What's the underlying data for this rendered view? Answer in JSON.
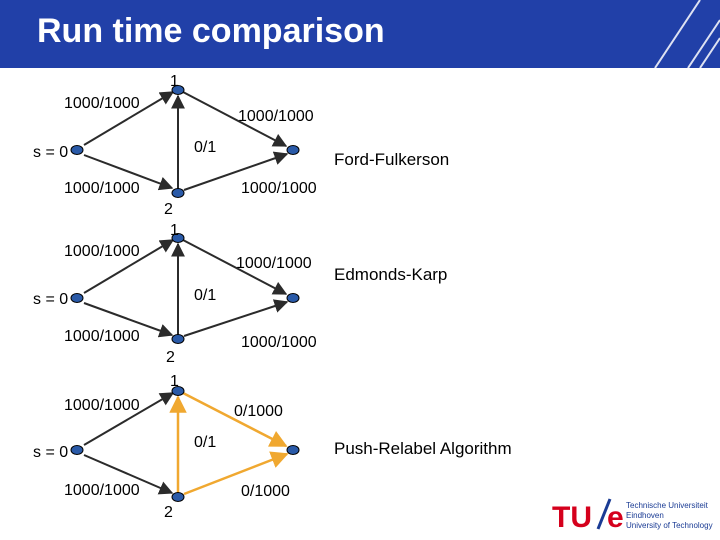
{
  "slide": {
    "title": "Run time comparison"
  },
  "colors": {
    "header": "#2140a8",
    "node": "#2a5aa8",
    "edge": "#2b2b2b",
    "highlight": "#f0a830",
    "logo_red": "#d5001c",
    "logo_blue": "#1a3b94"
  },
  "graphs": [
    {
      "algorithm": "Ford-Fulkerson",
      "top_node_label": "1",
      "bottom_node_label": "2",
      "source_label": "s = 0",
      "edges": {
        "s_to_1": "1000/1000",
        "n1_to_t": "1000/1000",
        "n2_to_n1": "0/1",
        "s_to_2": "1000/1000",
        "n2_to_t": "1000/1000"
      }
    },
    {
      "algorithm": "Edmonds-Karp",
      "top_node_label": "1",
      "bottom_node_label": "2",
      "source_label": "s = 0",
      "edges": {
        "s_to_1": "1000/1000",
        "n1_to_t": "1000/1000",
        "n2_to_n1": "0/1",
        "s_to_2": "1000/1000",
        "n2_to_t": "1000/1000"
      }
    },
    {
      "algorithm": "Push-Relabel Algorithm",
      "top_node_label": "1",
      "bottom_node_label": "2",
      "source_label": "s = 0",
      "edges": {
        "s_to_1": "1000/1000",
        "n1_to_t": "0/1000",
        "n2_to_n1": "0/1",
        "s_to_2": "1000/1000",
        "n2_to_t": "0/1000"
      }
    }
  ],
  "logo": {
    "mark": "TU/e",
    "line1": "Technische Universiteit",
    "line2": "Eindhoven",
    "line3": "University of Technology"
  }
}
